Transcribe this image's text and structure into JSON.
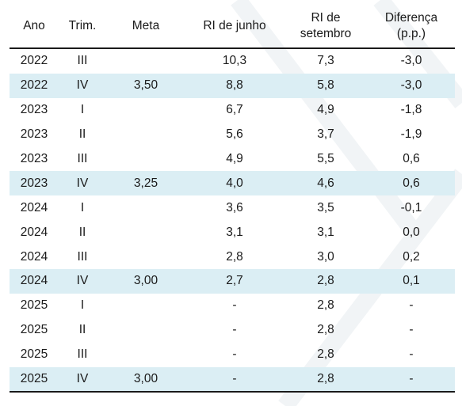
{
  "table": {
    "headers": {
      "ano": "Ano",
      "trim": "Trim.",
      "meta": "Meta",
      "ri_junho": "RI de junho",
      "ri_setembro_line1": "RI de",
      "ri_setembro_line2": "setembro",
      "diferenca_line1": "Diferença",
      "diferenca_line2": "(p.p.)"
    },
    "rows": [
      {
        "ano": "2022",
        "trim": "III",
        "meta": "",
        "ri_junho": "10,3",
        "ri_setembro": "7,3",
        "diferenca": "-3,0",
        "highlight": false
      },
      {
        "ano": "2022",
        "trim": "IV",
        "meta": "3,50",
        "ri_junho": "8,8",
        "ri_setembro": "5,8",
        "diferenca": "-3,0",
        "highlight": true
      },
      {
        "ano": "2023",
        "trim": "I",
        "meta": "",
        "ri_junho": "6,7",
        "ri_setembro": "4,9",
        "diferenca": "-1,8",
        "highlight": false
      },
      {
        "ano": "2023",
        "trim": "II",
        "meta": "",
        "ri_junho": "5,6",
        "ri_setembro": "3,7",
        "diferenca": "-1,9",
        "highlight": false
      },
      {
        "ano": "2023",
        "trim": "III",
        "meta": "",
        "ri_junho": "4,9",
        "ri_setembro": "5,5",
        "diferenca": "0,6",
        "highlight": false
      },
      {
        "ano": "2023",
        "trim": "IV",
        "meta": "3,25",
        "ri_junho": "4,0",
        "ri_setembro": "4,6",
        "diferenca": "0,6",
        "highlight": true
      },
      {
        "ano": "2024",
        "trim": "I",
        "meta": "",
        "ri_junho": "3,6",
        "ri_setembro": "3,5",
        "diferenca": "-0,1",
        "highlight": false
      },
      {
        "ano": "2024",
        "trim": "II",
        "meta": "",
        "ri_junho": "3,1",
        "ri_setembro": "3,1",
        "diferenca": "0,0",
        "highlight": false
      },
      {
        "ano": "2024",
        "trim": "III",
        "meta": "",
        "ri_junho": "2,8",
        "ri_setembro": "3,0",
        "diferenca": "0,2",
        "highlight": false
      },
      {
        "ano": "2024",
        "trim": "IV",
        "meta": "3,00",
        "ri_junho": "2,7",
        "ri_setembro": "2,8",
        "diferenca": "0,1",
        "highlight": true
      },
      {
        "ano": "2025",
        "trim": "I",
        "meta": "",
        "ri_junho": "-",
        "ri_setembro": "2,8",
        "diferenca": "-",
        "highlight": false
      },
      {
        "ano": "2025",
        "trim": "II",
        "meta": "",
        "ri_junho": "-",
        "ri_setembro": "2,8",
        "diferenca": "-",
        "highlight": false
      },
      {
        "ano": "2025",
        "trim": "III",
        "meta": "",
        "ri_junho": "-",
        "ri_setembro": "2,8",
        "diferenca": "-",
        "highlight": false
      },
      {
        "ano": "2025",
        "trim": "IV",
        "meta": "3,00",
        "ri_junho": "-",
        "ri_setembro": "2,8",
        "diferenca": "-",
        "highlight": true
      }
    ]
  },
  "colors": {
    "highlight_row": "#dbeef4",
    "rule": "#1a1a1a",
    "text": "#1a1a1a"
  }
}
